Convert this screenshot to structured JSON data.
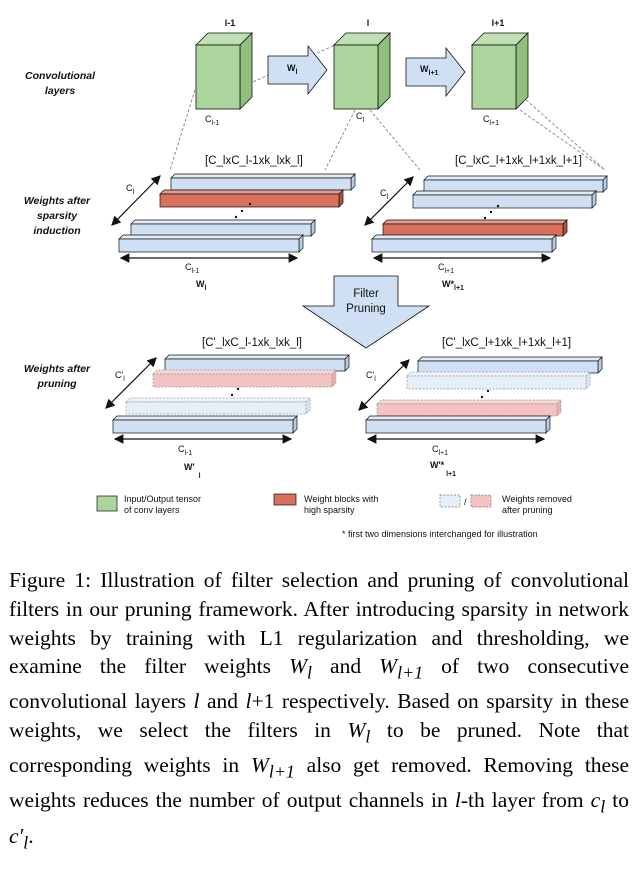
{
  "diagram": {
    "row_labels": {
      "conv": [
        "Convolutional",
        "layers"
      ],
      "sparse": [
        "Weights after",
        "sparsity",
        "induction"
      ],
      "pruned": [
        "Weights after",
        "pruning"
      ]
    },
    "conv_layers": [
      {
        "top": "l-1",
        "bottom": "C",
        "bottom_sub": "l-1"
      },
      {
        "top": "l",
        "bottom": "C",
        "bottom_sub": "l"
      },
      {
        "top": "l+1",
        "bottom": "C",
        "bottom_sub": "l+1"
      }
    ],
    "arrows": [
      {
        "label": "W",
        "sub": "l"
      },
      {
        "label": "W",
        "sub": "l+1"
      }
    ],
    "sparse_blocks": [
      {
        "dim_label": "[C_lxC_l-1xk_lxk_l]",
        "side": "C",
        "side_sub": "l",
        "bottom": "C",
        "bottom_sub": "l-1",
        "name": "W",
        "name_sub": "l"
      },
      {
        "dim_label": "[C_lxC_l+1xk_l+1xk_l+1]",
        "side": "C",
        "side_sub": "l",
        "bottom": "C",
        "bottom_sub": "l+1",
        "name": "W*",
        "name_sub": "l+1"
      }
    ],
    "pruned_blocks": [
      {
        "dim_label": "[C'_lxC_l-1xk_lxk_l]",
        "side": "C'",
        "side_sub": "l",
        "bottom": "C",
        "bottom_sub": "l-1",
        "name": "W'",
        "name_sub": "l"
      },
      {
        "dim_label": "[C'_lxC_l+1xk_l+1xk_l+1]",
        "side": "C'",
        "side_sub": "l",
        "bottom": "C",
        "bottom_sub": "l+1",
        "name": "W'*",
        "name_sub": "l+1"
      }
    ],
    "filter_pruning": [
      "Filter",
      "Pruning"
    ],
    "legend": [
      {
        "lines": [
          "Input/Output tensor",
          "of conv layers"
        ],
        "color": "#acd59d"
      },
      {
        "lines": [
          "Weight blocks with",
          "high sparsity"
        ],
        "color": "#d9705c"
      },
      {
        "lines": [
          "Weights removed",
          "after pruning"
        ],
        "color": "#f4c2c0"
      }
    ],
    "footnote": "* first two dimensions interchanged for illustration",
    "colors": {
      "tensor": "#acd59d",
      "weight": "#cfe0f4",
      "sparse": "#d9705c",
      "removed": "#f4c2c0",
      "arrow": "#cfe0f4"
    }
  },
  "caption": "Figure 1: Illustration of filter selection and pruning of convolutional filters in our pruning framework. After introducing sparsity in network weights by training with L1 regularization and thresholding, we examine the filter weights W_l and W_{l+1} of two consecutive convolutional layers l and l+1 respectively. Based on sparsity in these weights, we select the filters in W_l to be pruned. Note that corresponding weights in W_{l+1} also get removed. Removing these weights reduces the number of output channels in l-th layer from c_l to c'_l."
}
